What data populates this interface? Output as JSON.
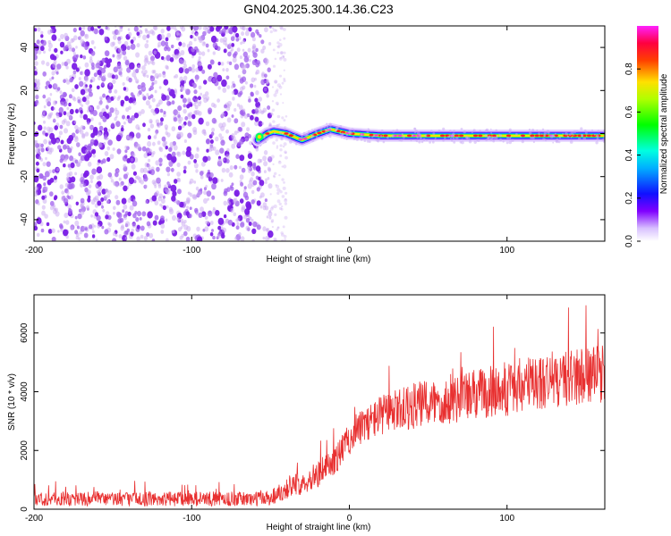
{
  "title": "GN04.2025.300.14.36.C23",
  "colors": {
    "snr_line": "#e83030",
    "scatter_light": "#c9a7f2",
    "scatter_dark": "#7a1ee6",
    "frame": "#000000"
  },
  "chart_data": [
    {
      "type": "heatmap",
      "name": "spectrogram",
      "xlabel": "Height of straight line (km)",
      "ylabel": "Frequency (Hz)",
      "xlim": [
        -200,
        162
      ],
      "ylim": [
        -50,
        50
      ],
      "xticks": [
        -200,
        -100,
        0,
        100
      ],
      "yticks": [
        -40,
        -20,
        0,
        20,
        40
      ],
      "noise_region": [
        -200,
        -50
      ],
      "signal_track": {
        "x": [
          -58,
          -52,
          -48,
          -40,
          -30,
          -20,
          -12,
          0,
          20,
          40,
          60,
          80,
          100,
          120,
          140,
          162
        ],
        "y": [
          -3,
          0,
          1,
          0,
          -3,
          0,
          2,
          0,
          -1,
          -1,
          -1,
          -1,
          -1,
          -1,
          -1,
          -1
        ]
      },
      "colorbar": {
        "label": "Normalized spectral amplitude",
        "range": [
          0,
          1
        ],
        "ticks": [
          "0.0",
          "0.2",
          "0.4",
          "0.6",
          "0.8"
        ],
        "colormap": [
          "#ffffff",
          "#c080ff",
          "#8000ff",
          "#0000ff",
          "#00ffff",
          "#00ff00",
          "#ffff00",
          "#ff0000",
          "#ff00ff"
        ]
      }
    },
    {
      "type": "line",
      "name": "snr",
      "xlabel": "Height of straight line (km)",
      "ylabel": "SNR (10 * v/v)",
      "xlim": [
        -200,
        162
      ],
      "ylim": [
        0,
        7300
      ],
      "xticks": [
        -200,
        -100,
        0,
        100
      ],
      "yticks": [
        0,
        2000,
        4000,
        6000
      ],
      "series": [
        {
          "name": "SNR",
          "x": [
            -200,
            -150,
            -100,
            -60,
            -50,
            -40,
            -30,
            -20,
            -10,
            0,
            10,
            20,
            40,
            60,
            80,
            100,
            120,
            140,
            160
          ],
          "y": [
            350,
            350,
            350,
            350,
            400,
            700,
            900,
            1200,
            1600,
            2400,
            2900,
            3200,
            3500,
            3700,
            3900,
            4100,
            4300,
            4500,
            4600
          ],
          "noise_amplitude": [
            250,
            250,
            250,
            250,
            300,
            350,
            400,
            450,
            500,
            550,
            600,
            700,
            800,
            850,
            900,
            950,
            1000,
            1000,
            1000
          ]
        }
      ]
    }
  ]
}
